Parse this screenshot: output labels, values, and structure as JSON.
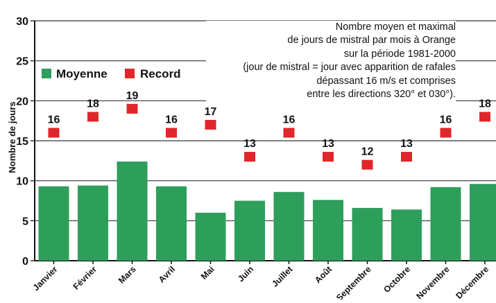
{
  "note_lines": [
    "Nombre moyen et maximal",
    "de jours de mistral par mois à Orange",
    "sur la période 1981-2000",
    "(jour de mistral = jour avec apparition de rafales",
    "dépassant 16 m/s et comprises",
    "entre les directions 320° et 030°)."
  ],
  "colors": {
    "moyenne": "#2e9e5b",
    "record": "#e0262a",
    "grid": "#333333"
  },
  "chart_data": {
    "type": "bar",
    "ylabel": "Nombre de jours",
    "ylim": [
      0,
      30
    ],
    "yticks": [
      0,
      5,
      10,
      15,
      20,
      25,
      30
    ],
    "legend_position": "top-left",
    "categories": [
      "Janvier",
      "Février",
      "Mars",
      "Avril",
      "Mai",
      "Juin",
      "Juillet",
      "Août",
      "Septembre",
      "Octobre",
      "Novembre",
      "Décembre"
    ],
    "series": [
      {
        "name": "Moyenne",
        "type": "bar",
        "values": [
          9.3,
          9.4,
          12.4,
          9.3,
          6.0,
          7.5,
          8.6,
          7.6,
          6.6,
          6.4,
          9.2,
          9.6
        ]
      },
      {
        "name": "Record",
        "type": "marker",
        "values": [
          16,
          18,
          19,
          16,
          17,
          13,
          16,
          13,
          12,
          13,
          16,
          18
        ]
      }
    ]
  }
}
